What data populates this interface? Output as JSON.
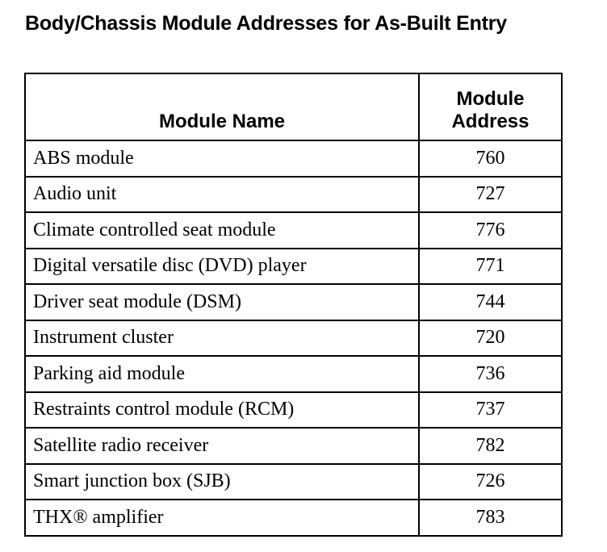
{
  "title": "Body/Chassis Module Addresses for As-Built Entry",
  "table": {
    "headers": [
      "Module Name",
      "Module Address"
    ],
    "rows": [
      {
        "name": "ABS module",
        "address": "760"
      },
      {
        "name": "Audio unit",
        "address": "727"
      },
      {
        "name": "Climate controlled seat module",
        "address": "776"
      },
      {
        "name": "Digital versatile disc (DVD) player",
        "address": "771"
      },
      {
        "name": "Driver seat module (DSM)",
        "address": "744"
      },
      {
        "name": "Instrument cluster",
        "address": "720"
      },
      {
        "name": "Parking aid module",
        "address": "736"
      },
      {
        "name": "Restraints control module (RCM)",
        "address": "737"
      },
      {
        "name": "Satellite radio receiver",
        "address": "782"
      },
      {
        "name": "Smart junction box (SJB)",
        "address": "726"
      },
      {
        "name": "THX® amplifier",
        "address": "783"
      }
    ]
  }
}
